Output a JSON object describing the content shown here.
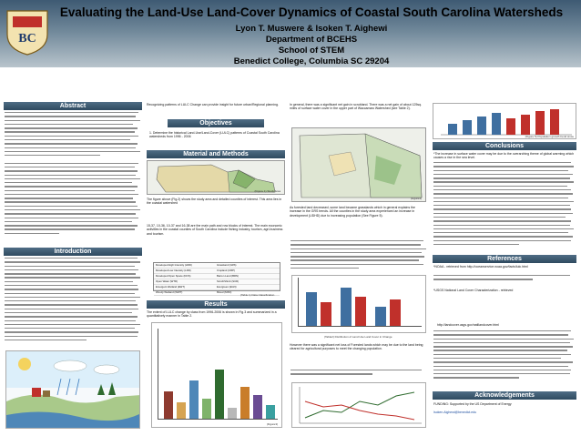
{
  "header": {
    "title": "Evaluating the Land-Use Land-Cover Dynamics of Coastal South Carolina Watersheds",
    "authors": "Lyon T. Muswere & Isoken T. Aighewi",
    "department": "Department of BCEHS",
    "school": "School of STEM",
    "college": "Benedict College, Columbia SC 29204",
    "logo_text": "BC"
  },
  "sections": {
    "abstract": "Abstract",
    "introduction": "Introduction",
    "objectives": "Objectives",
    "materials": "Material and Methods",
    "results": "Results",
    "conclusions": "Conclusions",
    "references": "References"
  },
  "col2": {
    "intro_tail": "Recognizing patterns of LULC Change can provide insight for future urban/Regional planning.",
    "objective": "1. Determine the historical Land-Use/Land-Cover (LULC) patterns of Coastal South Carolina watersheds from 1996 - 2006",
    "fig_label": "(Figure 1) Study Area",
    "methods_1": "The figure above (Fig.2) shows the study area and detailed counties of interest. This area lies in the coastal watershed",
    "methods_2": "15-37, 10-36, 10-37 and 16-38 are the main path and row blocks of interest. The main economic activities in the coastal counties of South Carolina include fishing industry, tourism, agri-business and tourism.",
    "results_text": "The extent of LULC change by class from 1996-2006 is shown in Fig.3 and summarized in a quantitatively manner in Table 2.",
    "table_caption": "(Table 1) Data Classification",
    "fig3_label": "(Figure3)"
  },
  "col3": {
    "intro": "In general, there was a significant net gain in scrubland. There was a net gain of about 125sq. miles of surface water cover in the upper part of Waccamaw Watershed (see Table 2).",
    "middle": "As forested land decreased, some land became grasslands which in general explains the increase in the GRS trends. All the counties in the study area experienced an increase in development (UDHD) due to increasing population (See Figure 5).",
    "table_caption": "(Table2) Distribution of Land Use Land Cover in Change",
    "lower": "However there was a significant net loss of Forested lands which may be due to the land being cleared for agricultural purposes to meet the changing population.",
    "fig4_label": "(Figure4)"
  },
  "col4": {
    "fig_caption": "(Figure 5) Population growth trend since",
    "conclusions_1": "*The increase in surface water cover may be due to the overarching theme of global warming which causes a rise in the sea level.",
    "references_1": "*NOAA - retrieved from http://oceanservice.noaa.gov/facts/lulc.html",
    "references_2": "*USGS National Land Cover Characterization - retrieved",
    "references_3": "http://landcover.usgs.gov/natllandcover.html",
    "ack": "Acknowledgements",
    "footer_email": "FUNDING: Supported by the US Department of Energy",
    "footer_contact": "Isoken.Aighewi@benedict.edu"
  },
  "table1": {
    "rows": [
      [
        "Developed High Intensity (HDD)",
        "Grassland (GRS)"
      ],
      [
        "Developed Low Intensity (LDD)",
        "Cropland (CRP)"
      ],
      [
        "Developed Open Space (DOS)",
        "Barren Land (BRN)"
      ],
      [
        "Open Water (WTR)",
        "Scrub/Shrub (SCR)"
      ],
      [
        "Emergent Wetland (EWT)",
        "Evergreen (EGN)"
      ],
      [
        "Woody Wetland (WWT)",
        "Mixed (MXD)"
      ]
    ]
  },
  "colors": {
    "header_top": "#3e5a73",
    "section_head": "#2f4a60",
    "accent_red": "#c0302b"
  }
}
